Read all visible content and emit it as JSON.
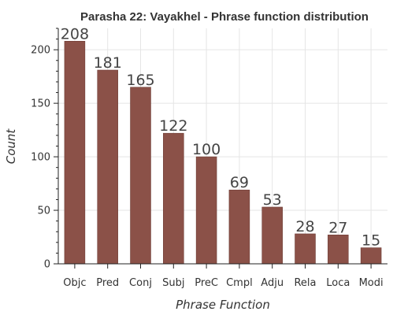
{
  "colors": {
    "bar": "#8b5148",
    "bar_edge": "#6e3c35"
  },
  "chart_data": {
    "type": "bar",
    "title": "Parasha 22: Vayakhel - Phrase function distribution",
    "xlabel": "Phrase Function",
    "ylabel": "Count",
    "categories": [
      "Objc",
      "Pred",
      "Conj",
      "Subj",
      "PreC",
      "Cmpl",
      "Adju",
      "Rela",
      "Loca",
      "Modi"
    ],
    "values": [
      208,
      181,
      165,
      122,
      100,
      69,
      53,
      28,
      27,
      15
    ],
    "ylim": [
      0,
      220
    ],
    "yticks": [
      0,
      50,
      100,
      150,
      200
    ],
    "grid": true,
    "data_labels": true
  }
}
